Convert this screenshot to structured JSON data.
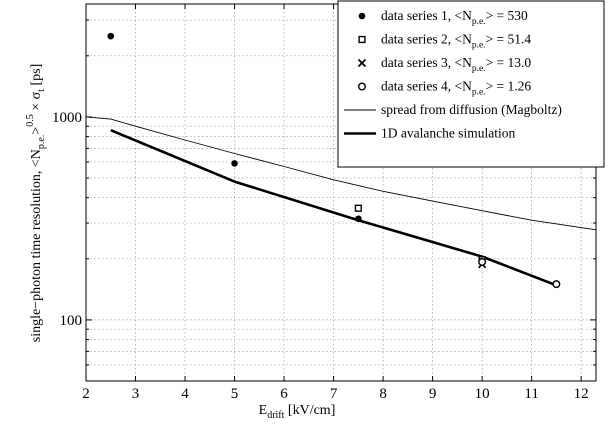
{
  "chart_data": {
    "type": "scatter",
    "xlabel": {
      "main": "E",
      "sub": "drift",
      "rest": " [kV/cm]"
    },
    "ylabel": {
      "p1": "single−photon time resolution,  <N",
      "s1": "p.e.",
      "p2": ">",
      "sup": "0.5",
      "p3": " × σ",
      "s2": "t",
      "p4": " [ps]"
    },
    "xlim": [
      2,
      12.3
    ],
    "ylim": [
      50,
      3600
    ],
    "yscale": "log",
    "grid": true,
    "legend_position": "top-right",
    "x_ticks": [
      2,
      3,
      4,
      5,
      6,
      7,
      8,
      9,
      10,
      11,
      12
    ],
    "y_ticks": [
      100,
      1000
    ],
    "y_tick_labels": [
      "100",
      "1000"
    ],
    "series": [
      {
        "marker": "filled-circle",
        "label_prefix": "data series 1,  <N",
        "label_sub": "p.e.",
        "label_suffix": "> = 530",
        "points": [
          [
            2.5,
            2500
          ],
          [
            5.0,
            590
          ],
          [
            7.5,
            315
          ]
        ]
      },
      {
        "marker": "open-square",
        "label_prefix": "data series 2,  <N",
        "label_sub": "p.e.",
        "label_suffix": "> = 51.4",
        "points": [
          [
            7.5,
            355
          ],
          [
            10.0,
            198
          ]
        ]
      },
      {
        "marker": "cross",
        "label_prefix": "data series 3,  <N",
        "label_sub": "p.e.",
        "label_suffix": "> = 13.0",
        "points": [
          [
            10.0,
            188
          ]
        ]
      },
      {
        "marker": "open-circle",
        "label_prefix": "data series 4,  <N",
        "label_sub": "p.e.",
        "label_suffix": "> = 1.26",
        "points": [
          [
            10.0,
            193
          ],
          [
            11.5,
            150
          ]
        ]
      }
    ],
    "lines": [
      {
        "style": "thin",
        "label": "spread from diffusion (Magboltz)",
        "points": [
          [
            2.0,
            1000
          ],
          [
            2.5,
            975
          ],
          [
            3.0,
            900
          ],
          [
            4.0,
            770
          ],
          [
            5.0,
            660
          ],
          [
            6.0,
            570
          ],
          [
            7.0,
            490
          ],
          [
            8.0,
            430
          ],
          [
            9.0,
            385
          ],
          [
            10.0,
            345
          ],
          [
            11.0,
            310
          ],
          [
            12.3,
            278
          ]
        ]
      },
      {
        "style": "thick",
        "label": "1D avalanche simulation",
        "points": [
          [
            2.5,
            860
          ],
          [
            5.0,
            480
          ],
          [
            7.5,
            310
          ],
          [
            10.0,
            205
          ],
          [
            11.5,
            148
          ]
        ]
      }
    ]
  }
}
